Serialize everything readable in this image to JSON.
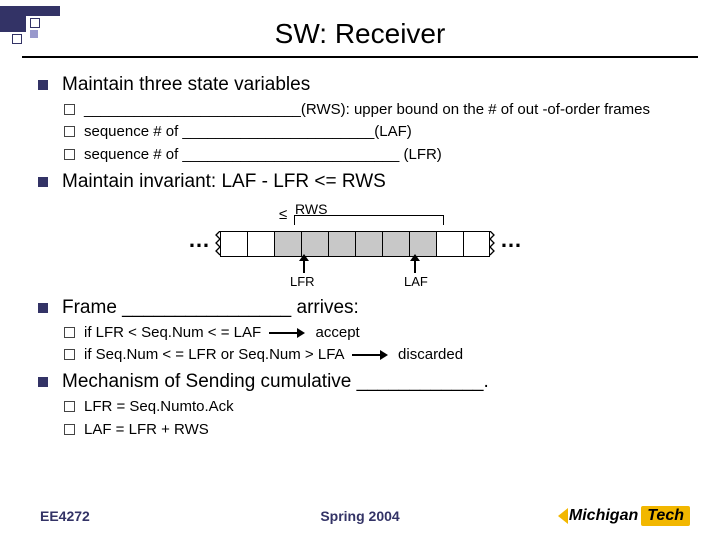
{
  "title": "SW: Receiver",
  "b1": {
    "head": "Maintain three state variables",
    "s1": "__________________________(RWS): upper bound on the # of out -of-order frames",
    "s2": "sequence # of _______________________(LAF)",
    "s3": "sequence # of __________________________ (LFR)"
  },
  "b2": {
    "head": "Maintain invariant: LAF - LFR <= RWS"
  },
  "diagram": {
    "rws": "RWS",
    "lfr": "LFR",
    "laf": "LAF",
    "dots": "…",
    "le": "≤",
    "gray_cells": [
      3,
      4,
      5,
      6,
      7,
      8
    ],
    "total_cells": 10
  },
  "b3": {
    "head_a": "Frame ________________ arrives:",
    "s1a": "if LFR < Seq.Num < = LAF",
    "s1b": "accept",
    "s2a": "if Seq.Num < = LFR or Seq.Num > LFA",
    "s2b": "discarded"
  },
  "b4": {
    "head": "Mechanism of Sending cumulative ____________.",
    "s1": "LFR = Seq.Numto.Ack",
    "s2": "LAF = LFR + RWS"
  },
  "footer": {
    "course": "EE4272",
    "sem": "Spring 2004",
    "logo1": "Michigan",
    "logo2": "Tech"
  }
}
